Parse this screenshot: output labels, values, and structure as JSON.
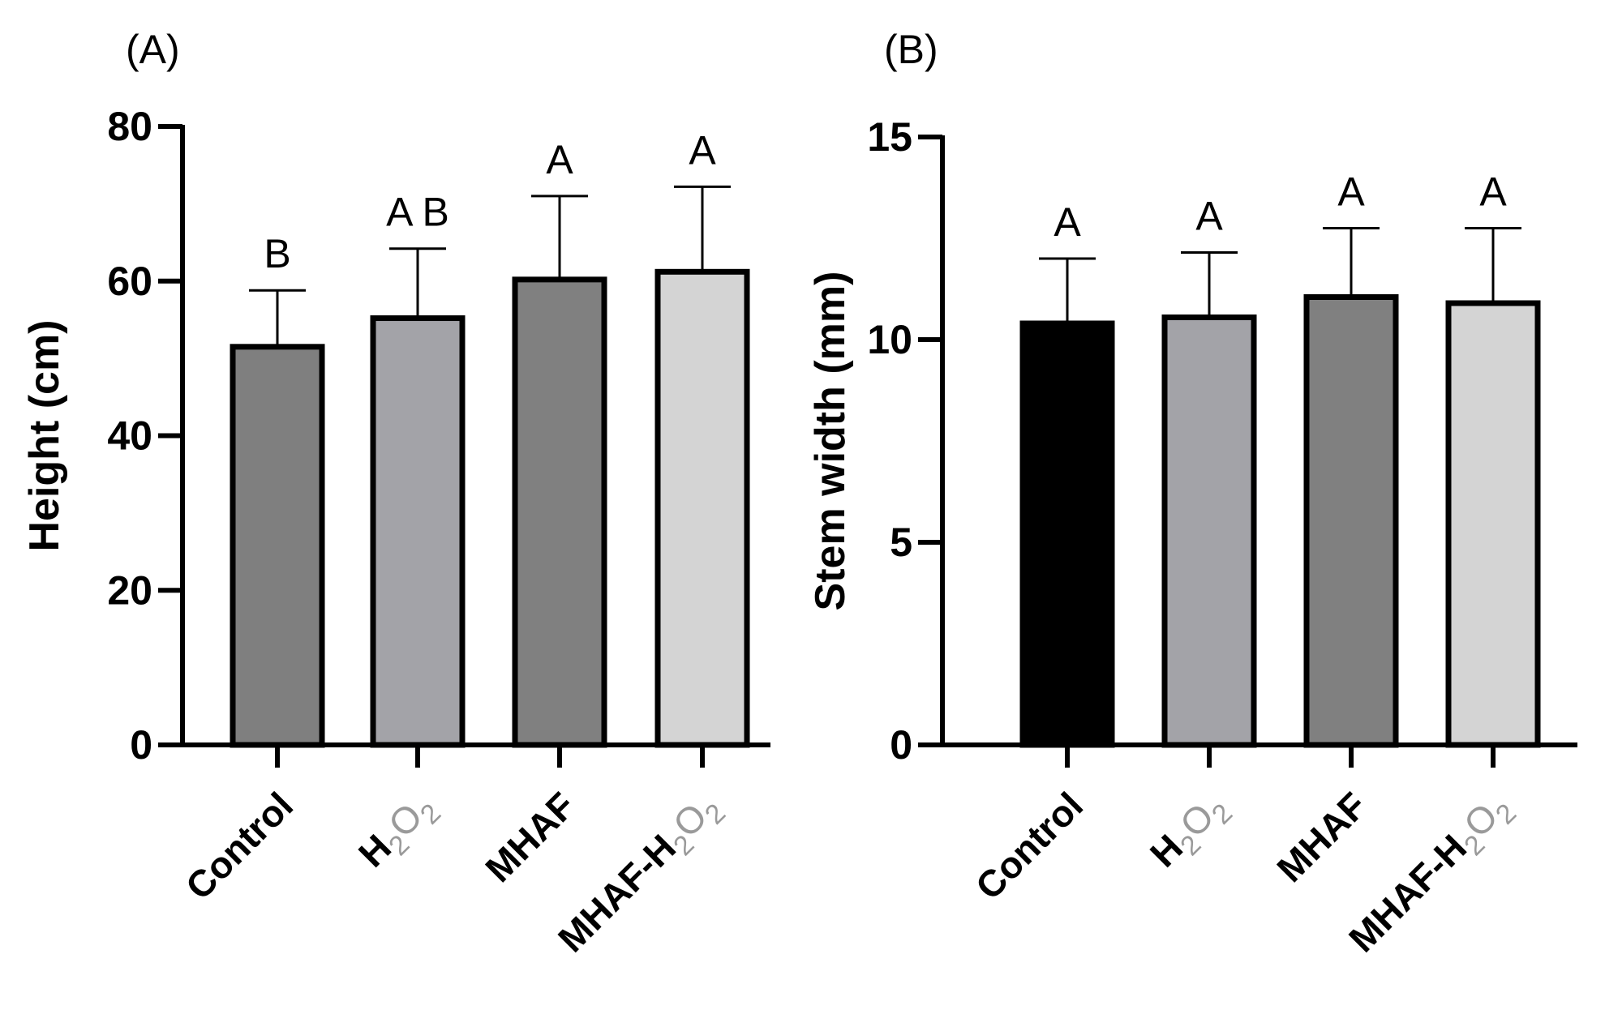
{
  "chart_data": [
    {
      "type": "bar",
      "panel_label": "(A)",
      "title": "",
      "xlabel": "",
      "ylabel": "Height (cm)",
      "ylim": [
        0,
        80
      ],
      "yticks": [
        0,
        20,
        40,
        60,
        80
      ],
      "grid": false,
      "categories": [
        "Control",
        "H2O2",
        "MHAF",
        "MHAF-H2O2"
      ],
      "values": [
        51.5,
        55.2,
        60.2,
        61.2
      ],
      "errors": [
        7.3,
        9.0,
        10.8,
        11.0
      ],
      "letters": [
        "B",
        "A B",
        "A",
        "A"
      ],
      "colors": [
        "#7f7f7f",
        "#a3a3a8",
        "#808080",
        "#d4d4d4"
      ]
    },
    {
      "type": "bar",
      "panel_label": "(B)",
      "title": "",
      "xlabel": "",
      "ylabel": "Stem width (mm)",
      "ylim": [
        0,
        15
      ],
      "yticks": [
        0,
        5,
        10,
        15
      ],
      "grid": false,
      "categories": [
        "Control",
        "H2O2",
        "MHAF",
        "MHAF-H2O2"
      ],
      "values": [
        10.4,
        10.55,
        11.05,
        10.9
      ],
      "errors": [
        1.6,
        1.6,
        1.7,
        1.85
      ],
      "letters": [
        "A",
        "A",
        "A",
        "A"
      ],
      "colors": [
        "#000000",
        "#a3a3a8",
        "#808080",
        "#d4d4d4"
      ]
    }
  ]
}
